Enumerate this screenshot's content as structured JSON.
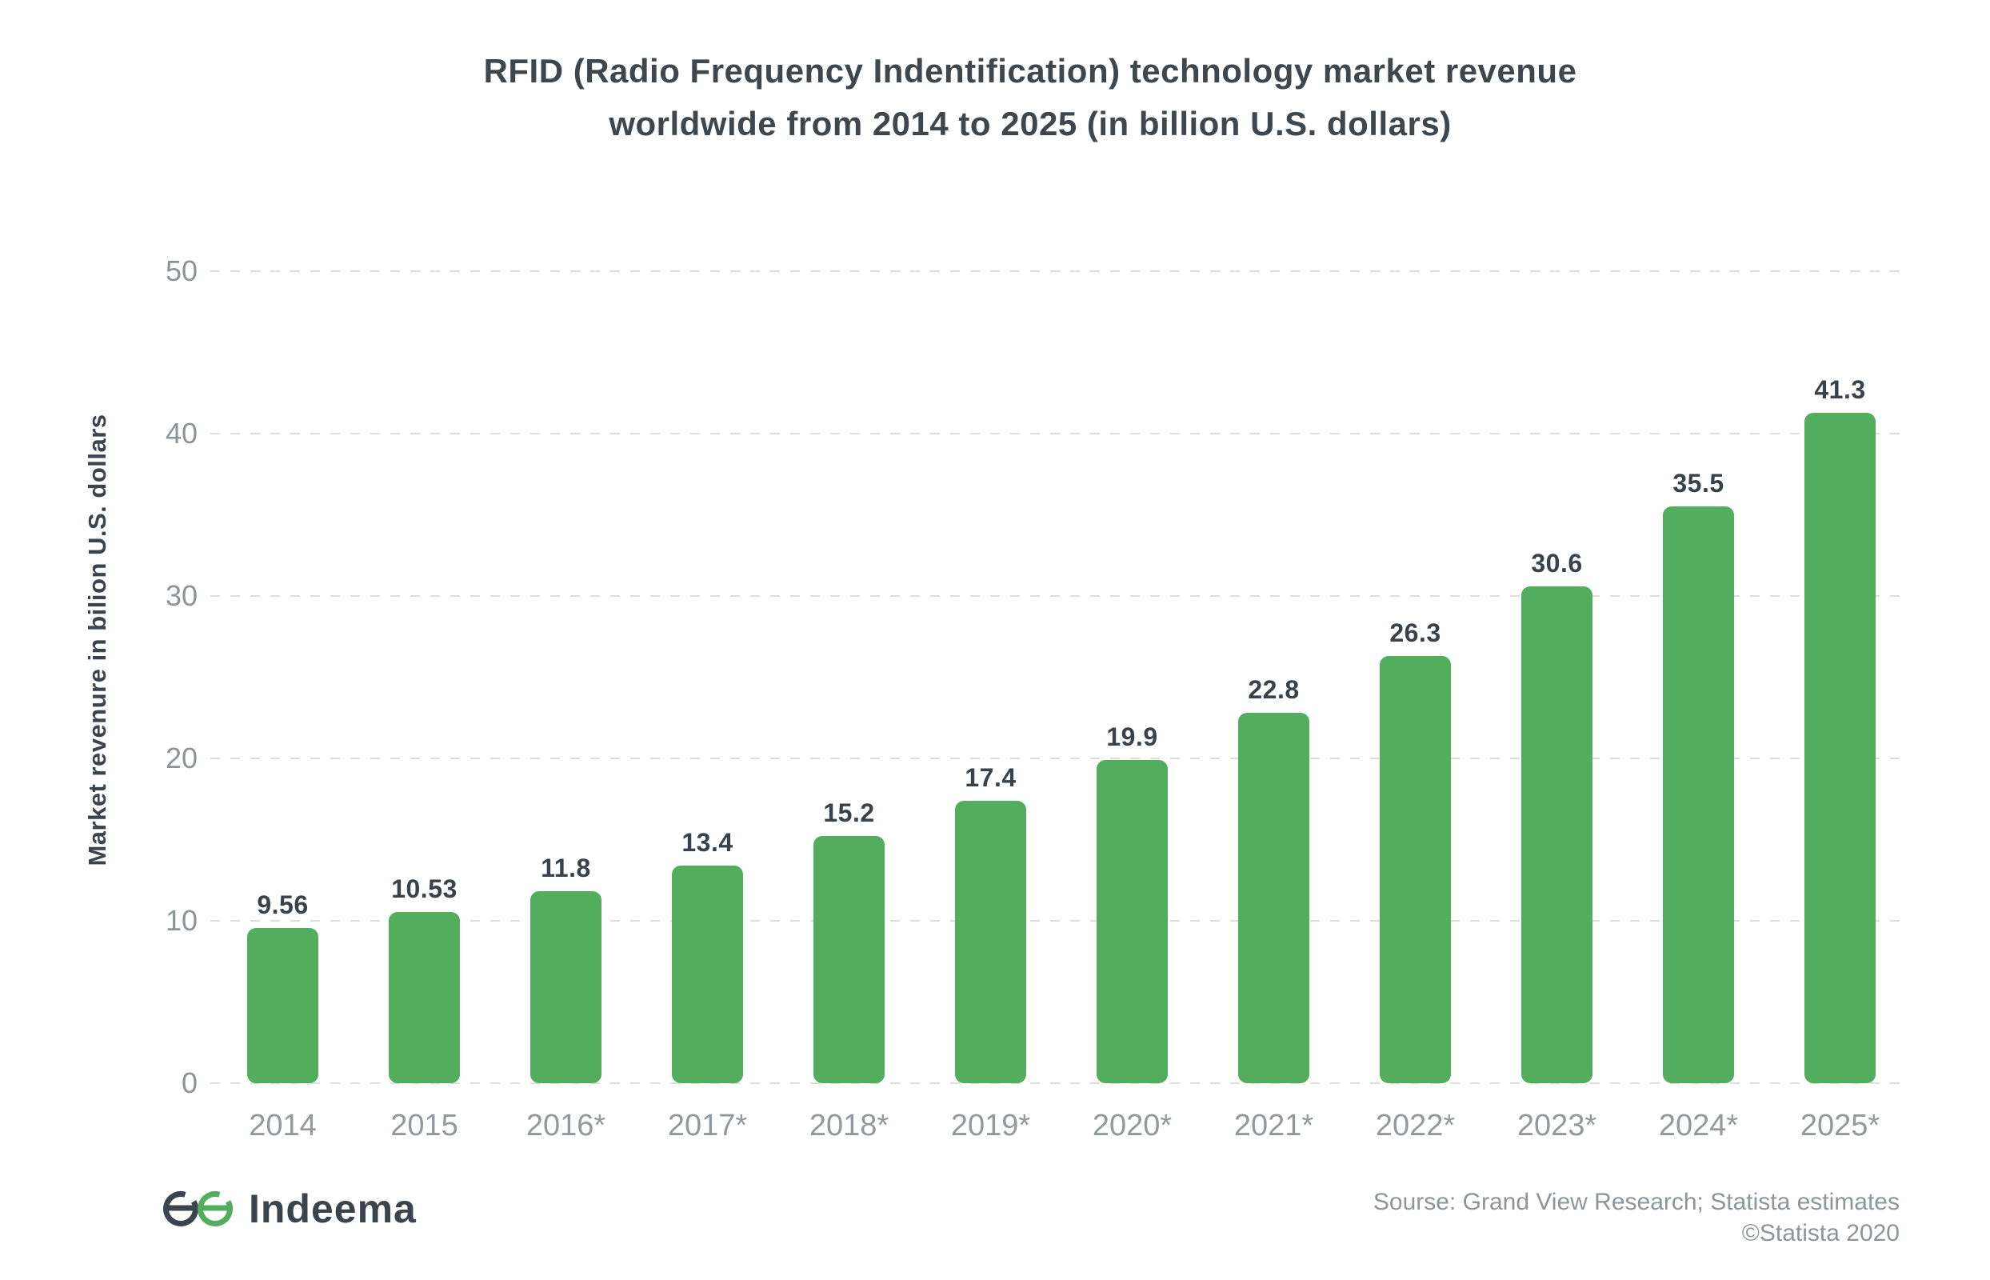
{
  "title": {
    "line1": "RFID (Radio Frequency Indentification) technology market revenue",
    "line2": "worldwide from 2014 to 2025 (in billion U.S. dollars)"
  },
  "y_axis": {
    "title": "Market revenure in bilion U.S. dollars",
    "tick_labels": [
      "50",
      "40",
      "30",
      "20",
      "10",
      "0"
    ]
  },
  "footer": {
    "logo_text": "Indeema",
    "source_line1": "Sourse: Grand View Research; Statista estimates",
    "source_line2": "©Statista 2020"
  },
  "colors": {
    "bar_green": "#52AE5C",
    "dark_text": "#3B444C",
    "axis_text_gray": "#8E9397",
    "gridline_gray": "#DBDDDF",
    "logo_dark": "#3B444C",
    "logo_green": "#52AE5C"
  },
  "chart_data": {
    "type": "bar",
    "title": "RFID (Radio Frequency Indentification) technology market revenue worldwide from 2014 to 2025 (in billion U.S. dollars)",
    "categories": [
      "2014",
      "2015",
      "2016*",
      "2017*",
      "2018*",
      "2019*",
      "2020*",
      "2021*",
      "2022*",
      "2023*",
      "2024*",
      "2025*"
    ],
    "values": [
      9.56,
      10.53,
      11.8,
      13.4,
      15.2,
      17.4,
      19.9,
      22.8,
      26.3,
      30.6,
      35.5,
      41.3
    ],
    "value_labels": [
      "9.56",
      "10.53",
      "11.8",
      "13.4",
      "15.2",
      "17.4",
      "19.9",
      "22.8",
      "26.3",
      "30.6",
      "35.5",
      "41.3"
    ],
    "xlabel": "",
    "ylabel": "Market revenure in bilion U.S. dollars",
    "ylim": [
      0,
      50
    ],
    "yticks": [
      0,
      10,
      20,
      30,
      40,
      50
    ],
    "grid": "horizontal-dashed",
    "legend": "none",
    "bar_color": "#52AE5C"
  }
}
